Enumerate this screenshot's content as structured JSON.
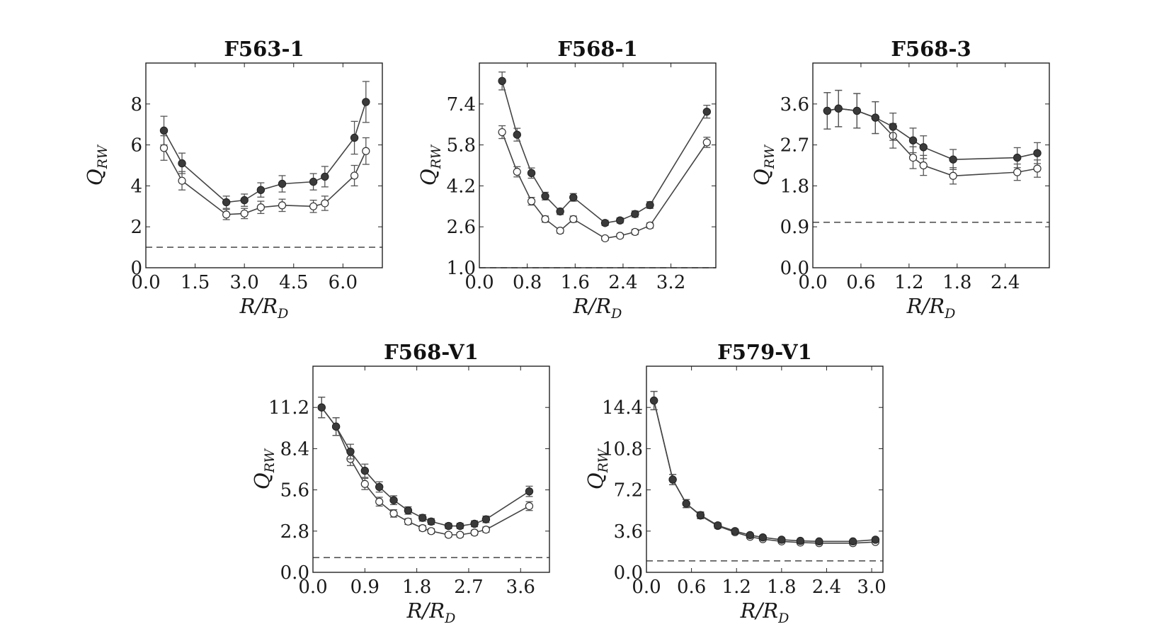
{
  "chart_data": [
    {
      "type": "line",
      "title": "F563-1",
      "xlabel": "R/R",
      "xlabel_sub": "D",
      "ylabel": "Q",
      "ylabel_sub": "RW",
      "xlim": [
        0,
        7.2
      ],
      "ylim": [
        0,
        10
      ],
      "xticks": [
        0.0,
        1.5,
        3.0,
        4.5,
        6.0
      ],
      "xtick_labels": [
        "0.0",
        "1.5",
        "3.0",
        "4.5",
        "6.0"
      ],
      "yticks": [
        0,
        2,
        4,
        6,
        8
      ],
      "ytick_labels": [
        "0",
        "2",
        "4",
        "6",
        "8"
      ],
      "reference_line": 1.0,
      "series": [
        {
          "name": "filled",
          "marker": "filled",
          "x": [
            0.55,
            1.1,
            2.45,
            3.0,
            3.5,
            4.15,
            5.1,
            5.45,
            6.35,
            6.7
          ],
          "y": [
            6.7,
            5.1,
            3.2,
            3.3,
            3.8,
            4.1,
            4.2,
            4.45,
            6.35,
            8.1
          ],
          "err": [
            0.7,
            0.5,
            0.3,
            0.3,
            0.35,
            0.4,
            0.4,
            0.5,
            0.8,
            1.0
          ]
        },
        {
          "name": "open",
          "marker": "open",
          "x": [
            0.55,
            1.1,
            2.45,
            3.0,
            3.5,
            4.15,
            5.1,
            5.45,
            6.35,
            6.7
          ],
          "y": [
            5.85,
            4.25,
            2.6,
            2.65,
            2.95,
            3.05,
            3.0,
            3.15,
            4.5,
            5.7
          ],
          "err": [
            0.6,
            0.45,
            0.25,
            0.25,
            0.3,
            0.3,
            0.3,
            0.35,
            0.5,
            0.65
          ]
        }
      ]
    },
    {
      "type": "line",
      "title": "F568-1",
      "xlabel": "R/R",
      "xlabel_sub": "D",
      "ylabel": "Q",
      "ylabel_sub": "RW",
      "xlim": [
        0,
        3.95
      ],
      "ylim": [
        1.0,
        9.0
      ],
      "xticks": [
        0.0,
        0.8,
        1.6,
        2.4,
        3.2
      ],
      "xtick_labels": [
        "0.0",
        "0.8",
        "1.6",
        "2.4",
        "3.2"
      ],
      "yticks": [
        1.0,
        2.6,
        4.2,
        5.8,
        7.4
      ],
      "ytick_labels": [
        "1.0",
        "2.6",
        "4.2",
        "5.8",
        "7.4"
      ],
      "reference_line": 1.0,
      "series": [
        {
          "name": "filled",
          "marker": "filled",
          "x": [
            0.38,
            0.63,
            0.87,
            1.1,
            1.35,
            1.57,
            2.1,
            2.35,
            2.6,
            2.85,
            3.8
          ],
          "y": [
            8.3,
            6.2,
            4.7,
            3.8,
            3.2,
            3.75,
            2.75,
            2.85,
            3.1,
            3.45,
            7.1
          ],
          "err": [
            0.35,
            0.25,
            0.2,
            0.15,
            0.12,
            0.15,
            0.1,
            0.1,
            0.12,
            0.13,
            0.25
          ]
        },
        {
          "name": "open",
          "marker": "open",
          "x": [
            0.38,
            0.63,
            0.87,
            1.1,
            1.35,
            1.57,
            2.1,
            2.35,
            2.6,
            2.85,
            3.8
          ],
          "y": [
            6.3,
            4.75,
            3.6,
            2.9,
            2.45,
            2.9,
            2.15,
            2.25,
            2.4,
            2.65,
            5.9
          ],
          "err": [
            0.25,
            0.2,
            0.15,
            0.12,
            0.1,
            0.12,
            0.08,
            0.08,
            0.1,
            0.1,
            0.2
          ]
        }
      ]
    },
    {
      "type": "line",
      "title": "F568-3",
      "xlabel": "R/R",
      "xlabel_sub": "D",
      "ylabel": "Q",
      "ylabel_sub": "RW",
      "xlim": [
        0,
        2.95
      ],
      "ylim": [
        0,
        4.5
      ],
      "xticks": [
        0.0,
        0.6,
        1.2,
        1.8,
        2.4
      ],
      "xtick_labels": [
        "0.0",
        "0.6",
        "1.2",
        "1.8",
        "2.4"
      ],
      "yticks": [
        0.0,
        0.9,
        1.8,
        2.7,
        3.6
      ],
      "ytick_labels": [
        "0.0",
        "0.9",
        "1.8",
        "2.7",
        "3.6"
      ],
      "reference_line": 1.0,
      "series": [
        {
          "name": "filled",
          "marker": "filled",
          "x": [
            0.18,
            0.32,
            0.55,
            0.78,
            1.0,
            1.25,
            1.38,
            1.75,
            2.55,
            2.8
          ],
          "y": [
            3.45,
            3.5,
            3.45,
            3.3,
            3.1,
            2.8,
            2.65,
            2.38,
            2.42,
            2.52
          ],
          "err": [
            0.4,
            0.4,
            0.38,
            0.35,
            0.3,
            0.27,
            0.25,
            0.22,
            0.22,
            0.23
          ]
        },
        {
          "name": "open",
          "marker": "open",
          "x": [
            0.18,
            0.32,
            0.55,
            0.78,
            1.0,
            1.25,
            1.38,
            1.75,
            2.55,
            2.8
          ],
          "y": [
            3.45,
            3.5,
            3.45,
            3.3,
            2.9,
            2.42,
            2.25,
            2.02,
            2.1,
            2.18
          ],
          "err": [
            0.4,
            0.4,
            0.38,
            0.35,
            0.27,
            0.24,
            0.22,
            0.18,
            0.18,
            0.19
          ]
        }
      ]
    },
    {
      "type": "line",
      "title": "F568-V1",
      "xlabel": "R/R",
      "xlabel_sub": "D",
      "ylabel": "Q",
      "ylabel_sub": "RW",
      "xlim": [
        0,
        4.1
      ],
      "ylim": [
        0,
        14.0
      ],
      "xticks": [
        0.0,
        0.9,
        1.8,
        2.7,
        3.6
      ],
      "xtick_labels": [
        "0.0",
        "0.9",
        "1.8",
        "2.7",
        "3.6"
      ],
      "yticks": [
        0.0,
        2.8,
        5.6,
        8.4,
        11.2
      ],
      "ytick_labels": [
        "0.0",
        "2.8",
        "5.6",
        "8.4",
        "11.2"
      ],
      "reference_line": 1.0,
      "series": [
        {
          "name": "filled",
          "marker": "filled",
          "x": [
            0.15,
            0.4,
            0.65,
            0.9,
            1.15,
            1.4,
            1.65,
            1.9,
            2.05,
            2.35,
            2.55,
            2.8,
            3.0,
            3.75
          ],
          "y": [
            11.2,
            9.9,
            8.2,
            6.9,
            5.8,
            4.9,
            4.2,
            3.7,
            3.45,
            3.15,
            3.15,
            3.3,
            3.6,
            5.5
          ],
          "err": [
            0.7,
            0.6,
            0.5,
            0.45,
            0.35,
            0.3,
            0.25,
            0.22,
            0.2,
            0.18,
            0.18,
            0.2,
            0.22,
            0.35
          ]
        },
        {
          "name": "open",
          "marker": "open",
          "x": [
            0.15,
            0.4,
            0.65,
            0.9,
            1.15,
            1.4,
            1.65,
            1.9,
            2.05,
            2.35,
            2.55,
            2.8,
            3.0,
            3.75
          ],
          "y": [
            11.2,
            9.9,
            7.7,
            6.0,
            4.8,
            4.0,
            3.45,
            3.0,
            2.8,
            2.55,
            2.55,
            2.7,
            2.9,
            4.5
          ],
          "err": [
            0.7,
            0.6,
            0.45,
            0.38,
            0.3,
            0.25,
            0.2,
            0.18,
            0.16,
            0.15,
            0.15,
            0.16,
            0.18,
            0.3
          ]
        }
      ]
    },
    {
      "type": "line",
      "title": "F579-V1",
      "xlabel": "R/R",
      "xlabel_sub": "D",
      "ylabel": "Q",
      "ylabel_sub": "RW",
      "xlim": [
        0,
        3.15
      ],
      "ylim": [
        0,
        18.0
      ],
      "xticks": [
        0.0,
        0.6,
        1.2,
        1.8,
        2.4,
        3.0
      ],
      "xtick_labels": [
        "0.0",
        "0.6",
        "1.2",
        "1.8",
        "2.4",
        "3.0"
      ],
      "yticks": [
        0.0,
        3.6,
        7.2,
        10.8,
        14.4
      ],
      "ytick_labels": [
        "0.0",
        "3.6",
        "7.2",
        "10.8",
        "14.4"
      ],
      "reference_line": 1.0,
      "series": [
        {
          "name": "filled",
          "marker": "filled",
          "x": [
            0.1,
            0.35,
            0.53,
            0.72,
            0.95,
            1.18,
            1.38,
            1.55,
            1.8,
            2.05,
            2.3,
            2.75,
            3.05
          ],
          "y": [
            15.0,
            8.1,
            6.0,
            5.0,
            4.1,
            3.6,
            3.25,
            3.05,
            2.85,
            2.75,
            2.7,
            2.7,
            2.85
          ],
          "err": [
            0.8,
            0.45,
            0.35,
            0.28,
            0.22,
            0.18,
            0.15,
            0.14,
            0.12,
            0.12,
            0.12,
            0.12,
            0.12
          ]
        },
        {
          "name": "open",
          "marker": "open",
          "x": [
            0.1,
            0.35,
            0.53,
            0.72,
            0.95,
            1.18,
            1.38,
            1.55,
            1.8,
            2.05,
            2.3,
            2.75,
            3.05
          ],
          "y": [
            15.0,
            8.1,
            6.0,
            4.95,
            4.05,
            3.5,
            3.1,
            2.9,
            2.7,
            2.6,
            2.55,
            2.55,
            2.65
          ],
          "err": [
            0.8,
            0.45,
            0.35,
            0.27,
            0.21,
            0.17,
            0.14,
            0.13,
            0.11,
            0.11,
            0.11,
            0.11,
            0.11
          ]
        }
      ]
    }
  ]
}
